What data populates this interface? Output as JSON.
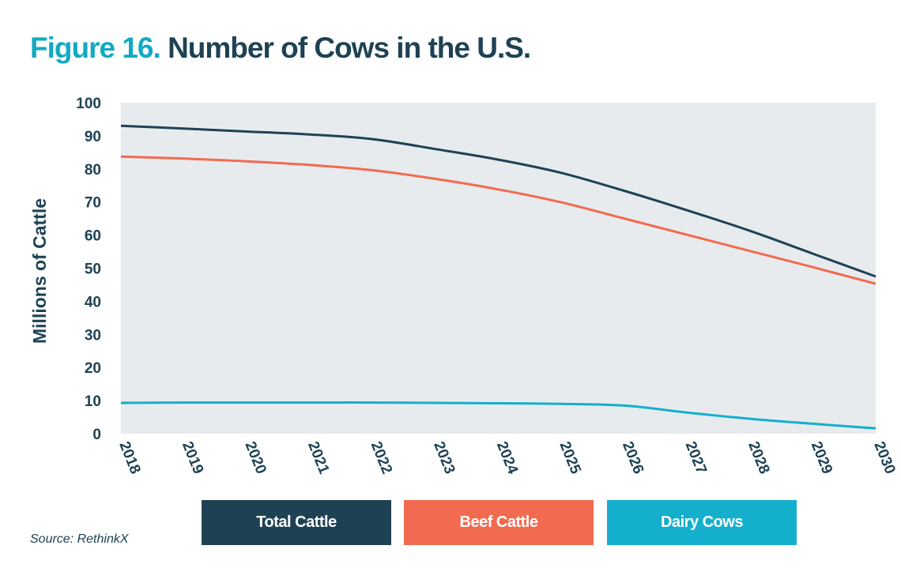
{
  "header": {
    "figure_label": "Figure 16.",
    "title_text": "Number of Cows in the U.S."
  },
  "source": "Source: RethinkX",
  "colors": {
    "plot_bg": "#e7ebed",
    "axis_text": "#1e4254",
    "total": "#1e4254",
    "beef": "#f26a50",
    "dairy": "#14afcc"
  },
  "chart_data": {
    "type": "line",
    "title": "Number of Cows in the U.S.",
    "xlabel": "",
    "ylabel": "Millions of Cattle",
    "x": [
      "2018",
      "2019",
      "2020",
      "2021",
      "2022",
      "2023",
      "2024",
      "2025",
      "2026",
      "2027",
      "2028",
      "2029",
      "2030"
    ],
    "ylim": [
      0,
      100
    ],
    "yticks": [
      0,
      10,
      20,
      30,
      40,
      50,
      60,
      70,
      80,
      90,
      100
    ],
    "grid": false,
    "legend_position": "bottom",
    "series": [
      {
        "name": "Total Cattle",
        "color": "#1e4254",
        "values": [
          93,
          92.2,
          91.3,
          90.4,
          89.0,
          86.0,
          82.8,
          78.8,
          73.4,
          67.5,
          61.3,
          54.4,
          47.5
        ]
      },
      {
        "name": "Beef Cattle",
        "color": "#f26a50",
        "values": [
          83.7,
          83.1,
          82.3,
          81.2,
          79.6,
          77.0,
          73.8,
          69.9,
          65.0,
          60.1,
          55.2,
          50.3,
          45.3
        ]
      },
      {
        "name": "Dairy Cows",
        "color": "#14afcc",
        "values": [
          9.3,
          9.4,
          9.4,
          9.4,
          9.4,
          9.3,
          9.2,
          9.0,
          8.5,
          6.4,
          4.5,
          3.0,
          1.6
        ]
      }
    ]
  }
}
